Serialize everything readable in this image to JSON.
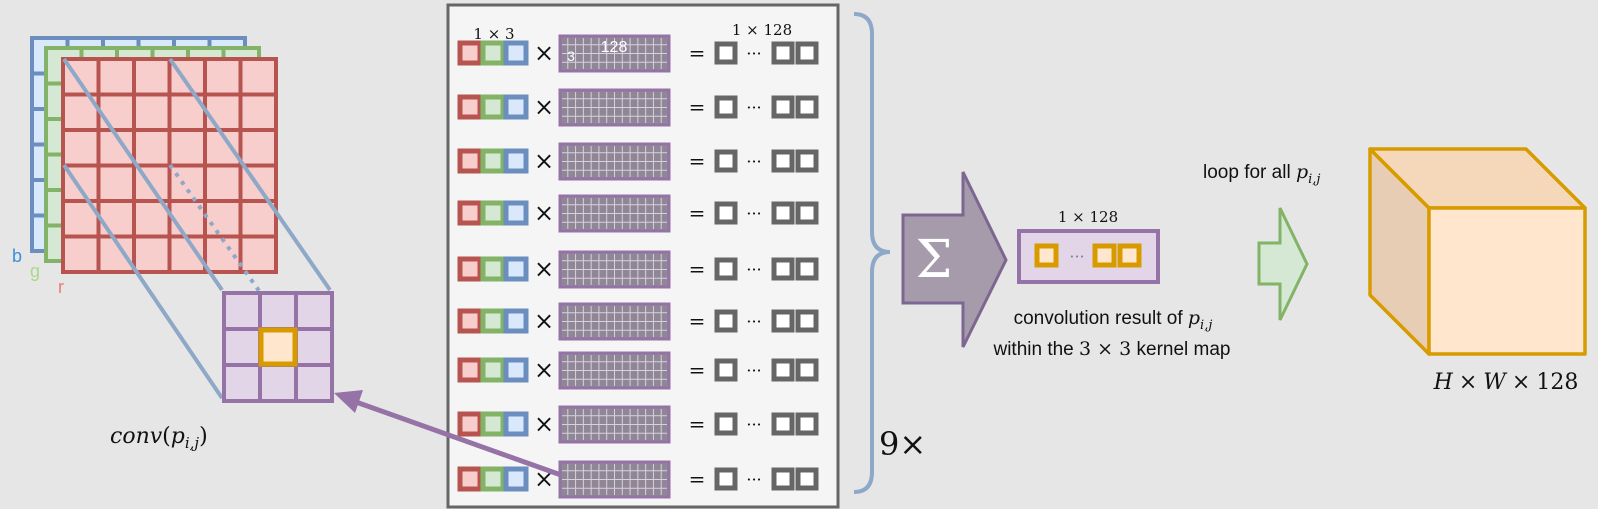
{
  "colors": {
    "background": "#e6e6e6",
    "red_stroke": "#b85450",
    "red_fill": "#f8cecc",
    "green_stroke": "#82b366",
    "green_fill": "#d5e8d4",
    "blue_stroke": "#6c8ebf",
    "blue_fill": "#dae8fc",
    "purple_stroke": "#9673a6",
    "purple_fill": "#e1d5e7",
    "orange_stroke": "#d79b00",
    "orange_fill": "#ffe6cc",
    "gray_stroke": "#666666",
    "sigma_fill": "#a59bab"
  },
  "input_channels": {
    "b_label": "b",
    "g_label": "g",
    "r_label": "r"
  },
  "conv_label": {
    "main": "conv",
    "open": "(",
    "var": "p",
    "sub": "i,j",
    "close": ")"
  },
  "matrix_panel": {
    "pixel_dim_label": "1 × 3",
    "output_dim_label": "1 × 128",
    "weight_rows_label": "3",
    "weight_cols_label": "128",
    "times_symbol": "×",
    "equals_symbol": "=",
    "ellipsis": "···",
    "row_count": 9
  },
  "repeat_label": "9×",
  "sum_symbol": "Σ",
  "result": {
    "dim_label": "1 × 128",
    "ellipsis": "···",
    "caption_line1_text": "convolution result of ",
    "caption_var": "p",
    "caption_sub": "i,j",
    "caption_line2_pre": "within the ",
    "caption_line2_math": "3 × 3",
    "caption_line2_post": " kernel map"
  },
  "loop": {
    "text": "loop for all ",
    "var": "p",
    "sub": "i,j"
  },
  "output_shape": {
    "h": "H",
    "w": "W",
    "times": "×",
    "channels": "128"
  }
}
